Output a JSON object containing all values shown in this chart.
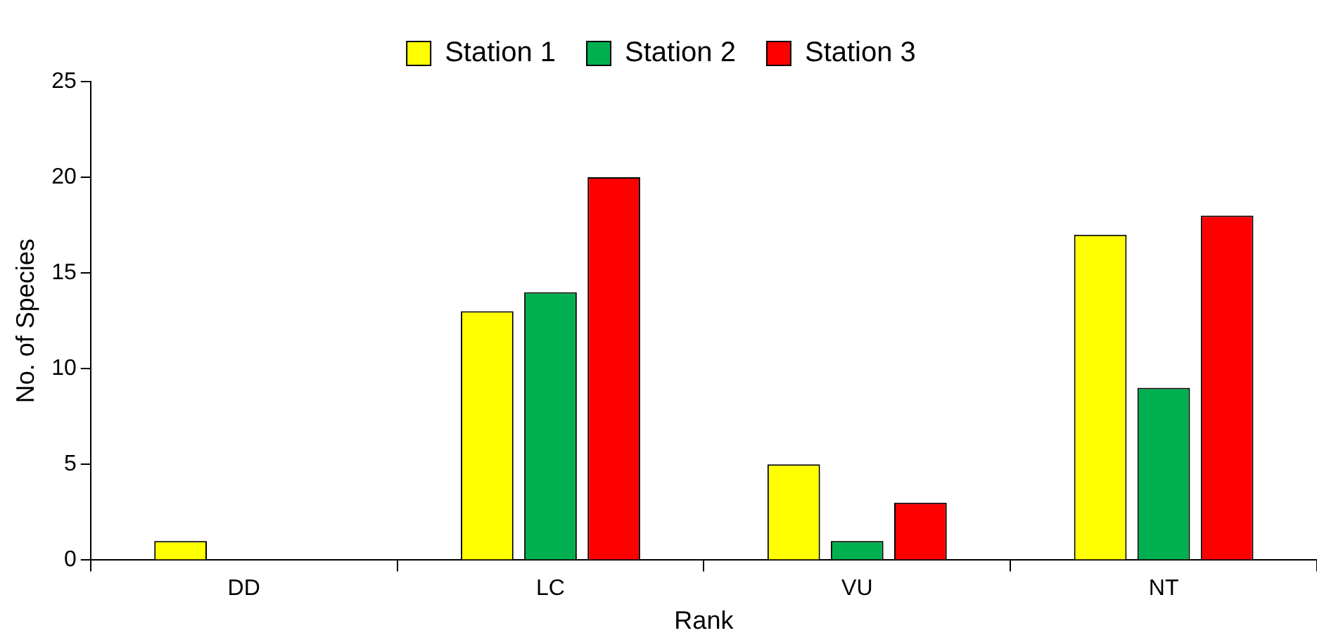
{
  "chart_data": {
    "type": "bar",
    "xlabel": "Rank",
    "ylabel": "No. of Species",
    "categories": [
      "DD",
      "LC",
      "VU",
      "NT"
    ],
    "series": [
      {
        "name": "Station 1",
        "color": "#ffff00",
        "values": [
          1,
          13,
          5,
          17
        ]
      },
      {
        "name": "Station 2",
        "color": "#00b050",
        "values": [
          0,
          14,
          1,
          9
        ]
      },
      {
        "name": "Station 3",
        "color": "#ff0000",
        "values": [
          0,
          20,
          3,
          18
        ]
      }
    ],
    "ylim": [
      0,
      25
    ],
    "yticks": [
      0,
      5,
      10,
      15,
      20,
      25
    ],
    "grid": false,
    "legend": "top"
  }
}
